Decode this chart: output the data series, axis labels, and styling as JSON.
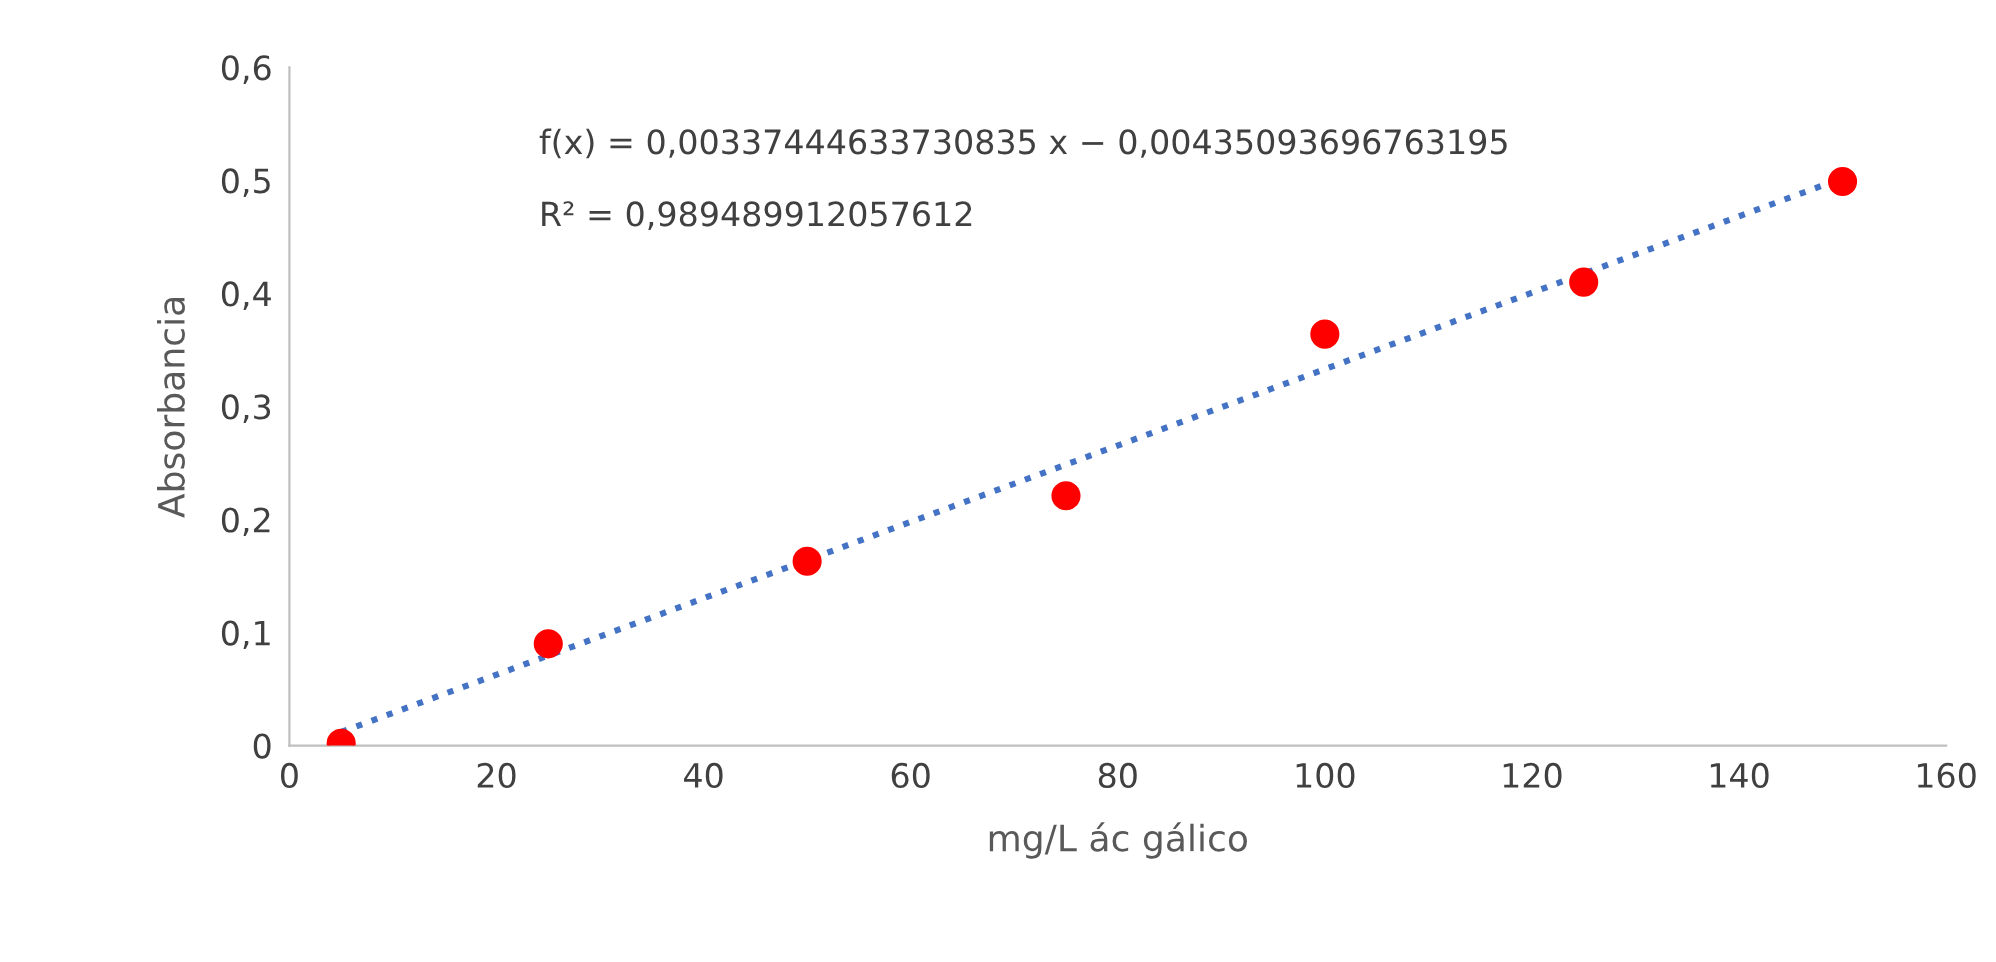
{
  "chart_data": {
    "type": "scatter",
    "xlabel": "mg/L ác gálico",
    "ylabel": "Absorbancia",
    "x": [
      5,
      25,
      50,
      75,
      100,
      125,
      150
    ],
    "series": [
      {
        "color": "#ff0000",
        "values": [
          0.002,
          0.09,
          0.163,
          0.221,
          0.364,
          0.41,
          0.499
        ],
        "marker": "circle"
      },
      {
        "type": "line",
        "color": "#4472c4",
        "x": [
          5,
          150
        ],
        "values": [
          0.012,
          0.502
        ],
        "line_style": "dotted",
        "marker": "none"
      }
    ],
    "xlim": [
      0,
      160
    ],
    "xticks": [
      0,
      20,
      40,
      60,
      80,
      100,
      120,
      140,
      160
    ],
    "ylim": [
      0,
      0.6
    ],
    "yticks": [
      0,
      {
        "value": 0.1,
        "label": "0,1"
      },
      {
        "value": 0.2,
        "label": "0,2"
      },
      {
        "value": 0.3,
        "label": "0,3"
      },
      {
        "value": 0.4,
        "label": "0,4"
      },
      {
        "value": 0.5,
        "label": "0,5"
      },
      {
        "value": 0.6,
        "label": "0,6"
      }
    ],
    "grid": false,
    "legend": false,
    "annotations": [
      "f(x) = 0,00337444633730835 x − 0,00435093696763195",
      "R² = 0,989489912057612"
    ]
  }
}
